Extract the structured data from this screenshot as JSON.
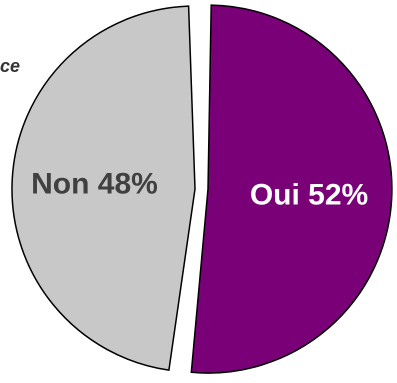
{
  "fragment_text": "ce",
  "chart_data": {
    "type": "pie",
    "slices": [
      {
        "label": "Oui",
        "value": 52,
        "display": "Oui 52%",
        "color": "#7a0078",
        "label_color": "#ffffff",
        "exploded": true
      },
      {
        "label": "Non",
        "value": 48,
        "display": "Non 48%",
        "color": "#c8c8c8",
        "label_color": "#404040",
        "exploded": false
      }
    ],
    "title": "",
    "legend": "none"
  }
}
